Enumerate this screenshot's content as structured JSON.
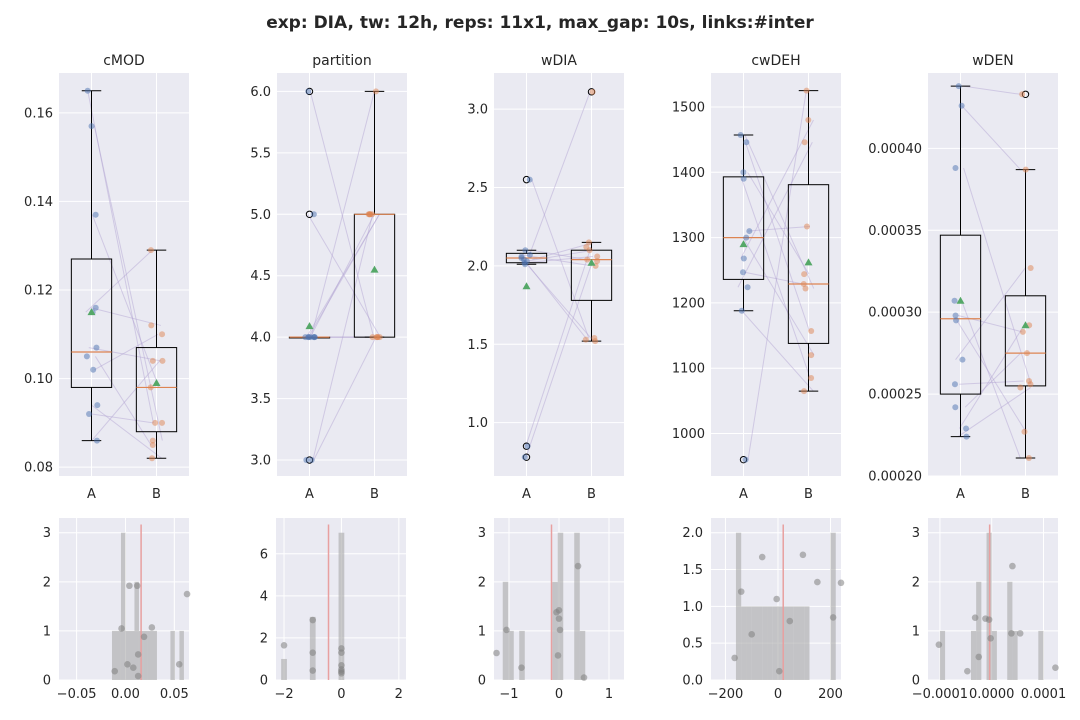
{
  "title": "exp: DIA, tw: 12h, reps: 11x1, max_gap: 10s, links:#inter",
  "colors": {
    "panel_bg": "#eaeaf2",
    "grid": "#ffffff",
    "group_a": "#4c72b0",
    "group_b": "#dd8452",
    "mean_marker": "#55a868",
    "hist_bar": "#a9a9a9",
    "hist_point": "#7f7f7f",
    "vline": "#e8a0a0",
    "link": "#b0a0d0"
  },
  "chart_data": [
    {
      "type": "box",
      "title": "cMOD",
      "categories": [
        "A",
        "B"
      ],
      "ylim": [
        0.078,
        0.169
      ],
      "yticks": [
        0.08,
        0.1,
        0.12,
        0.14,
        0.16
      ],
      "ytick_labels": [
        "0.08",
        "0.10",
        "0.12",
        "0.14",
        "0.16"
      ],
      "boxes": [
        {
          "q1": 0.098,
          "median": 0.106,
          "q3": 0.127,
          "whisker_low": 0.086,
          "whisker_high": 0.165,
          "mean": 0.115,
          "fliers": []
        },
        {
          "q1": 0.088,
          "median": 0.098,
          "q3": 0.107,
          "whisker_low": 0.082,
          "whisker_high": 0.129,
          "mean": 0.099,
          "fliers": []
        }
      ],
      "points": [
        [
          0.165,
          0.157,
          0.137,
          0.116,
          0.107,
          0.105,
          0.102,
          0.094,
          0.092,
          0.086,
          0.115
        ],
        [
          0.129,
          0.112,
          0.11,
          0.104,
          0.104,
          0.098,
          0.09,
          0.09,
          0.086,
          0.085,
          0.082
        ]
      ],
      "links": [
        [
          0.165,
          0.09
        ],
        [
          0.157,
          0.086
        ],
        [
          0.137,
          0.098
        ],
        [
          0.116,
          0.112
        ],
        [
          0.107,
          0.104
        ],
        [
          0.105,
          0.085
        ],
        [
          0.102,
          0.11
        ],
        [
          0.094,
          0.082
        ],
        [
          0.092,
          0.09
        ],
        [
          0.086,
          0.104
        ],
        [
          0.115,
          0.129
        ]
      ]
    },
    {
      "type": "box",
      "title": "partition",
      "categories": [
        "A",
        "B"
      ],
      "ylim": [
        2.87,
        6.15
      ],
      "yticks": [
        3.0,
        3.5,
        4.0,
        4.5,
        5.0,
        5.5,
        6.0
      ],
      "ytick_labels": [
        "3.0",
        "3.5",
        "4.0",
        "4.5",
        "5.0",
        "5.5",
        "6.0"
      ],
      "boxes": [
        {
          "q1": 4.0,
          "median": 4.0,
          "q3": 4.0,
          "whisker_low": 4.0,
          "whisker_high": 4.0,
          "mean": 4.09,
          "fliers": [
            6.0,
            5.0,
            3.0
          ]
        },
        {
          "q1": 4.0,
          "median": 5.0,
          "q3": 5.0,
          "whisker_low": 4.0,
          "whisker_high": 6.0,
          "mean": 4.55,
          "fliers": []
        }
      ],
      "points": [
        [
          6.0,
          5.0,
          4.0,
          4.0,
          4.0,
          4.0,
          4.0,
          4.0,
          4.0,
          3.0,
          3.0
        ],
        [
          6.0,
          5.0,
          5.0,
          5.0,
          5.0,
          5.0,
          4.0,
          4.0,
          4.0,
          4.0,
          4.0
        ]
      ],
      "links": [
        [
          6.0,
          4.0
        ],
        [
          5.0,
          4.0
        ],
        [
          4.0,
          5.0
        ],
        [
          4.0,
          5.0
        ],
        [
          4.0,
          4.0
        ],
        [
          4.0,
          6.0
        ],
        [
          4.0,
          4.0
        ],
        [
          4.0,
          5.0
        ],
        [
          4.0,
          4.0
        ],
        [
          3.0,
          5.0
        ],
        [
          3.0,
          4.0
        ]
      ]
    },
    {
      "type": "box",
      "title": "wDIA",
      "categories": [
        "A",
        "B"
      ],
      "ylim": [
        0.66,
        3.23
      ],
      "yticks": [
        1.0,
        1.5,
        2.0,
        2.5,
        3.0
      ],
      "ytick_labels": [
        "1.0",
        "1.5",
        "2.0",
        "2.5",
        "3.0"
      ],
      "boxes": [
        {
          "q1": 2.02,
          "median": 2.05,
          "q3": 2.08,
          "whisker_low": 2.01,
          "whisker_high": 2.1,
          "mean": 1.87,
          "fliers": [
            2.55,
            0.85,
            0.78
          ]
        },
        {
          "q1": 1.78,
          "median": 2.04,
          "q3": 2.1,
          "whisker_low": 1.52,
          "whisker_high": 2.15,
          "mean": 2.02,
          "fliers": [
            3.11
          ]
        }
      ],
      "points": [
        [
          2.55,
          2.1,
          2.07,
          2.06,
          2.05,
          2.04,
          2.03,
          2.02,
          2.01,
          0.85,
          0.78
        ],
        [
          3.11,
          2.15,
          2.12,
          2.1,
          2.06,
          2.04,
          2.03,
          2.0,
          1.54,
          1.53,
          1.52
        ]
      ],
      "links": [
        [
          2.55,
          1.54
        ],
        [
          2.1,
          2.04
        ],
        [
          2.07,
          2.0
        ],
        [
          2.06,
          3.11
        ],
        [
          2.05,
          1.52
        ],
        [
          2.04,
          2.15
        ],
        [
          2.03,
          2.1
        ],
        [
          2.02,
          2.06
        ],
        [
          2.01,
          1.53
        ],
        [
          0.85,
          2.12
        ],
        [
          0.78,
          2.03
        ]
      ]
    },
    {
      "type": "box",
      "title": "cwDEH",
      "categories": [
        "A",
        "B"
      ],
      "ylim": [
        935,
        1552
      ],
      "yticks": [
        1000,
        1100,
        1200,
        1300,
        1400,
        1500
      ],
      "ytick_labels": [
        "1000",
        "1100",
        "1200",
        "1300",
        "1400",
        "1500"
      ],
      "boxes": [
        {
          "q1": 1236,
          "median": 1300,
          "q3": 1393,
          "whisker_low": 1188,
          "whisker_high": 1457,
          "mean": 1290,
          "fliers": [
            960
          ]
        },
        {
          "q1": 1138,
          "median": 1229,
          "q3": 1381,
          "whisker_low": 1065,
          "whisker_high": 1525,
          "mean": 1262,
          "fliers": []
        }
      ],
      "points": [
        [
          1457,
          1446,
          1400,
          1390,
          1310,
          1300,
          1268,
          1247,
          1224,
          1188,
          960
        ],
        [
          1525,
          1480,
          1446,
          1317,
          1244,
          1229,
          1222,
          1157,
          1120,
          1085,
          1065
        ]
      ],
      "links": [
        [
          1457,
          1222
        ],
        [
          1446,
          1157
        ],
        [
          1400,
          1244
        ],
        [
          1390,
          1085
        ],
        [
          1310,
          1317
        ],
        [
          1300,
          1120
        ],
        [
          1268,
          1480
        ],
        [
          1247,
          1229
        ],
        [
          1224,
          1446
        ],
        [
          1188,
          1065
        ],
        [
          960,
          1525
        ]
      ]
    },
    {
      "type": "box",
      "title": "wDEN",
      "categories": [
        "A",
        "B"
      ],
      "ylim": [
        0.0002,
        0.000446
      ],
      "yticks": [
        0.0002,
        0.00025,
        0.0003,
        0.00035,
        0.0004
      ],
      "ytick_labels": [
        "0.00020",
        "0.00025",
        "0.00030",
        "0.00035",
        "0.00040"
      ],
      "boxes": [
        {
          "q1": 0.00025,
          "median": 0.000296,
          "q3": 0.000347,
          "whisker_low": 0.000224,
          "whisker_high": 0.000438,
          "mean": 0.000307,
          "fliers": []
        },
        {
          "q1": 0.000255,
          "median": 0.000275,
          "q3": 0.00031,
          "whisker_low": 0.000211,
          "whisker_high": 0.000387,
          "mean": 0.000292,
          "fliers": [
            0.000433
          ]
        }
      ],
      "points": [
        [
          0.000438,
          0.000426,
          0.000388,
          0.000307,
          0.000298,
          0.000295,
          0.000271,
          0.000256,
          0.000242,
          0.000229,
          0.000224
        ],
        [
          0.000433,
          0.000387,
          0.000327,
          0.000292,
          0.000288,
          0.000275,
          0.000258,
          0.000256,
          0.000254,
          0.000227,
          0.000211
        ]
      ],
      "links": [
        [
          0.000438,
          0.000433
        ],
        [
          0.000426,
          0.000387
        ],
        [
          0.000388,
          0.000256
        ],
        [
          0.000307,
          0.000211
        ],
        [
          0.000298,
          0.000288
        ],
        [
          0.000295,
          0.000227
        ],
        [
          0.000271,
          0.000327
        ],
        [
          0.000256,
          0.000258
        ],
        [
          0.000242,
          0.000275
        ],
        [
          0.000229,
          0.000292
        ],
        [
          0.000224,
          0.000254
        ]
      ]
    },
    {
      "type": "histogram",
      "xlim": [
        -0.068,
        0.065
      ],
      "ylim": [
        0,
        3.3
      ],
      "xticks": [
        -0.05,
        0.0,
        0.05
      ],
      "xtick_labels": [
        "−0.05",
        "0.00",
        "0.05"
      ],
      "yticks": [
        0,
        1,
        2,
        3
      ],
      "ytick_labels": [
        "0",
        "1",
        "2",
        "3"
      ],
      "bin_width": 0.0046,
      "bins": [
        [
          -0.0115,
          1
        ],
        [
          -0.0069,
          1
        ],
        [
          -0.0023,
          3
        ],
        [
          0.0023,
          1
        ],
        [
          0.0069,
          1
        ],
        [
          0.0115,
          2
        ],
        [
          0.0161,
          1
        ],
        [
          0.0207,
          1
        ],
        [
          0.0253,
          1
        ],
        [
          0.0299,
          1
        ],
        [
          0.0483,
          1
        ],
        [
          0.0575,
          1
        ]
      ],
      "vline": 0.016,
      "points": [
        [
          -0.011,
          0.18
        ],
        [
          -0.004,
          1.05
        ],
        [
          0.002,
          0.32
        ],
        [
          0.004,
          1.92
        ],
        [
          0.008,
          0.25
        ],
        [
          0.012,
          1.92
        ],
        [
          0.013,
          0.52
        ],
        [
          0.013,
          0.08
        ],
        [
          0.019,
          0.88
        ],
        [
          0.027,
          1.07
        ],
        [
          0.055,
          0.32
        ],
        [
          0.063,
          1.75
        ]
      ]
    },
    {
      "type": "histogram",
      "xlim": [
        -2.28,
        2.25
      ],
      "ylim": [
        0,
        7.7
      ],
      "xticks": [
        -2,
        0,
        2
      ],
      "xtick_labels": [
        "−2",
        "0",
        "2"
      ],
      "yticks": [
        0,
        2,
        4,
        6
      ],
      "ytick_labels": [
        "0",
        "2",
        "4",
        "6"
      ],
      "bin_width": 0.2,
      "bins": [
        [
          -2.0,
          1
        ],
        [
          -1.0,
          3
        ],
        [
          0.0,
          7
        ]
      ],
      "vline": -0.45,
      "points": [
        [
          -2.0,
          1.65
        ],
        [
          -1.0,
          1.3
        ],
        [
          -1.0,
          2.85
        ],
        [
          -1.0,
          0.45
        ],
        [
          0.0,
          1.5
        ],
        [
          0.0,
          1.3
        ],
        [
          0.0,
          0.7
        ],
        [
          0.0,
          0.5
        ],
        [
          0.0,
          0.4
        ],
        [
          0.0,
          0.32
        ]
      ]
    },
    {
      "type": "histogram",
      "xlim": [
        -1.3,
        1.3
      ],
      "ylim": [
        0,
        3.3
      ],
      "xticks": [
        -1,
        0,
        1
      ],
      "xtick_labels": [
        "−1",
        "0",
        "1"
      ],
      "yticks": [
        0,
        1,
        2,
        3
      ],
      "ytick_labels": [
        "0",
        "1",
        "2",
        "3"
      ],
      "bin_width": 0.11,
      "bins": [
        [
          -1.07,
          2
        ],
        [
          -0.96,
          1
        ],
        [
          -0.74,
          1
        ],
        [
          -0.08,
          2
        ],
        [
          0.03,
          3
        ],
        [
          0.36,
          3
        ],
        [
          0.47,
          1
        ]
      ],
      "vline": -0.15,
      "points": [
        [
          -1.25,
          0.55
        ],
        [
          -1.05,
          1.02
        ],
        [
          -0.75,
          0.25
        ],
        [
          -0.05,
          1.38
        ],
        [
          0.0,
          1.42
        ],
        [
          0.0,
          1.25
        ],
        [
          0.02,
          1.02
        ],
        [
          -0.02,
          0.5
        ],
        [
          0.38,
          2.32
        ],
        [
          0.5,
          0.05
        ]
      ]
    },
    {
      "type": "histogram",
      "xlim": [
        -255,
        240
      ],
      "ylim": [
        0,
        2.2
      ],
      "xticks": [
        -200,
        0,
        200
      ],
      "xtick_labels": [
        "−200",
        "0",
        "200"
      ],
      "yticks": [
        0.0,
        0.5,
        1.0,
        1.5,
        2.0
      ],
      "ytick_labels": [
        "0.0",
        "0.5",
        "1.0",
        "1.5",
        "2.0"
      ],
      "bin_width": 20,
      "bins": [
        [
          -150,
          2
        ],
        [
          -130,
          1
        ],
        [
          -110,
          1
        ],
        [
          -90,
          1
        ],
        [
          -70,
          1
        ],
        [
          -50,
          1
        ],
        [
          -30,
          1
        ],
        [
          -10,
          1
        ],
        [
          10,
          1
        ],
        [
          30,
          1
        ],
        [
          50,
          1
        ],
        [
          70,
          1
        ],
        [
          90,
          1
        ],
        [
          110,
          1
        ],
        [
          210,
          2
        ]
      ],
      "vline": 20,
      "points": [
        [
          -165,
          0.3
        ],
        [
          -140,
          1.2
        ],
        [
          -100,
          0.62
        ],
        [
          -60,
          1.67
        ],
        [
          -5,
          1.1
        ],
        [
          5,
          0.12
        ],
        [
          45,
          0.8
        ],
        [
          95,
          1.7
        ],
        [
          150,
          1.33
        ],
        [
          210,
          0.85
        ],
        [
          240,
          1.32
        ]
      ]
    },
    {
      "type": "histogram",
      "xlim": [
        -0.000123,
        0.000128
      ],
      "ylim": [
        0,
        3.3
      ],
      "xticks": [
        -0.0001,
        0.0,
        0.0001
      ],
      "xtick_labels": [
        "−0.0001",
        "0.0000",
        "0.0001"
      ],
      "yticks": [
        0,
        1,
        2,
        3
      ],
      "ytick_labels": [
        "0",
        "1",
        "2",
        "3"
      ],
      "bin_width": 1e-05,
      "bins": [
        [
          -9.5e-05,
          1
        ],
        [
          -3.5e-05,
          1
        ],
        [
          -2.5e-05,
          2
        ],
        [
          -5e-06,
          3
        ],
        [
          5e-06,
          1
        ],
        [
          3.5e-05,
          2
        ],
        [
          4.5e-05,
          1
        ],
        [
          9.5e-05,
          1
        ]
      ],
      "vline": -4e-06,
      "points": [
        [
          -0.000102,
          0.72
        ],
        [
          -4.7e-05,
          0.18
        ],
        [
          -3.2e-05,
          1.27
        ],
        [
          -2.5e-05,
          0.47
        ],
        [
          -1.2e-05,
          1.25
        ],
        [
          -5e-06,
          1.23
        ],
        [
          -2e-06,
          0.85
        ],
        [
          3.8e-05,
          0.95
        ],
        [
          4e-05,
          2.32
        ],
        [
          5.5e-05,
          0.95
        ],
        [
          0.000123,
          0.25
        ]
      ]
    }
  ]
}
